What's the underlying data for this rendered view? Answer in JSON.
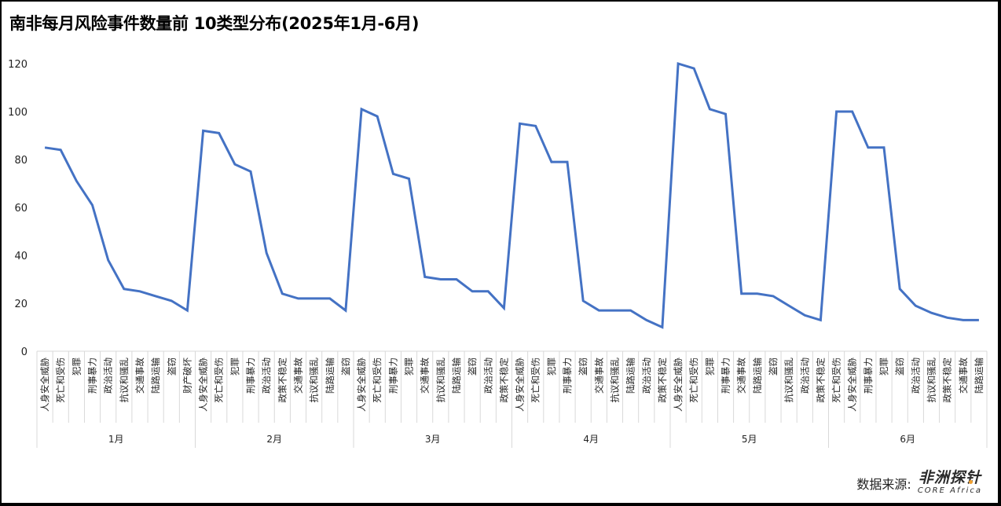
{
  "title": "南非每月风险事件数量前 10类型分布(2025年1月-6月)",
  "source": {
    "label": "数据来源:",
    "logo_cn": "非洲探针",
    "logo_en": "CORE Africa",
    "accent_color": "#f0a030"
  },
  "colors": {
    "line": "#4472c4",
    "grid": "#d9d9d9",
    "frame": "#000000"
  },
  "chart_data": {
    "type": "line",
    "title": "南非每月风险事件数量前 10类型分布(2025年1月-6月)",
    "xlabel": "",
    "ylabel": "",
    "ylim": [
      0,
      120
    ],
    "yticks": [
      0,
      20,
      40,
      60,
      80,
      100,
      120
    ],
    "grid": false,
    "legend": null,
    "groups": [
      {
        "month": "1月",
        "categories": [
          "人身安全威胁",
          "死亡和受伤",
          "犯罪",
          "刑事暴力",
          "政治活动",
          "抗议和骚乱",
          "交通事故",
          "陆路运输",
          "盗窃",
          "财产破坏"
        ],
        "values": [
          85,
          84,
          71,
          61,
          38,
          26,
          25,
          23,
          21,
          17
        ]
      },
      {
        "month": "2月",
        "categories": [
          "人身安全威胁",
          "死亡和受伤",
          "犯罪",
          "刑事暴力",
          "政治活动",
          "政策不稳定",
          "交通事故",
          "抗议和骚乱",
          "陆路运输",
          "盗窃"
        ],
        "values": [
          92,
          91,
          78,
          75,
          41,
          24,
          22,
          22,
          22,
          17
        ]
      },
      {
        "month": "3月",
        "categories": [
          "人身安全威胁",
          "死亡和受伤",
          "刑事暴力",
          "犯罪",
          "交通事故",
          "抗议和骚乱",
          "陆路运输",
          "盗窃",
          "政治活动",
          "政策不稳定"
        ],
        "values": [
          101,
          98,
          74,
          72,
          31,
          30,
          30,
          25,
          25,
          18
        ]
      },
      {
        "month": "4月",
        "categories": [
          "人身安全威胁",
          "死亡和受伤",
          "犯罪",
          "刑事暴力",
          "盗窃",
          "交通事故",
          "抗议和骚乱",
          "陆路运输",
          "政治活动",
          "政策不稳定"
        ],
        "values": [
          95,
          94,
          79,
          79,
          21,
          17,
          17,
          17,
          13,
          10
        ]
      },
      {
        "month": "5月",
        "categories": [
          "人身安全威胁",
          "死亡和受伤",
          "犯罪",
          "刑事暴力",
          "交通事故",
          "陆路运输",
          "盗窃",
          "抗议和骚乱",
          "政治活动",
          "政策不稳定"
        ],
        "values": [
          120,
          118,
          101,
          99,
          24,
          24,
          23,
          19,
          15,
          13
        ]
      },
      {
        "month": "6月",
        "categories": [
          "死亡和受伤",
          "人身安全威胁",
          "刑事暴力",
          "犯罪",
          "盗窃",
          "政治活动",
          "抗议和骚乱",
          "政策不稳定",
          "交通事故",
          "陆路运输"
        ],
        "values": [
          100,
          100,
          85,
          85,
          26,
          19,
          16,
          14,
          13,
          13
        ]
      }
    ]
  }
}
